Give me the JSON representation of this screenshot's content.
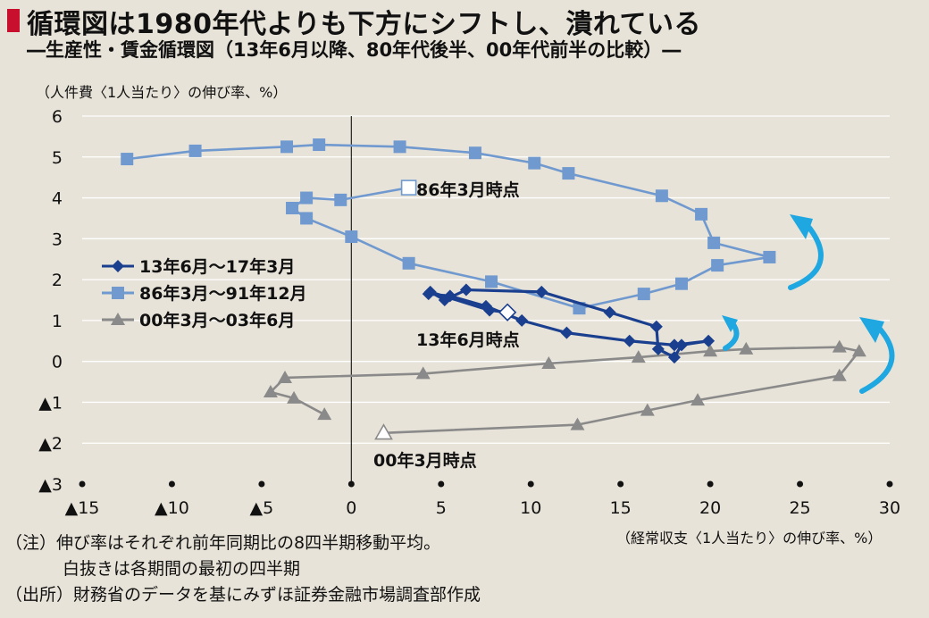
{
  "header": {
    "title": "循環図は1980年代よりも下方にシフトし、潰れている",
    "subtitle": "―生産性・賃金循環図（13年6月以降、80年代後半、00年代前半の比較）―"
  },
  "notes": {
    "line1": "（注）伸び率はそれぞれ前年同期比の8四半期移動平均。",
    "line2": "白抜きは各期間の最初の四半期",
    "line3": "（出所）財務省のデータを基にみずほ証券金融市場調査部作成"
  },
  "chart_data": {
    "type": "scatter",
    "ylabel": "（人件費〈1人当たり〉の伸び率、%）",
    "xlabel": "（経常収支〈1人当たり〉の伸び率、%）",
    "xlim": [
      -15,
      30
    ],
    "ylim": [
      -3,
      6
    ],
    "x_ticks": [
      -15,
      -10,
      -5,
      0,
      5,
      10,
      15,
      20,
      25,
      30
    ],
    "x_tick_labels": [
      "▲15",
      "▲10",
      "▲5",
      "0",
      "5",
      "10",
      "15",
      "20",
      "25",
      "30"
    ],
    "y_ticks": [
      6,
      5,
      4,
      3,
      2,
      1,
      0,
      -1,
      -2,
      -3
    ],
    "y_tick_labels": [
      "6",
      "5",
      "4",
      "3",
      "2",
      "1",
      "0",
      "▲1",
      "▲2",
      "▲3"
    ],
    "grid": true,
    "legend_position": "left-middle",
    "series": [
      {
        "name": "13年6月～17年3月",
        "color": "#1a3f8f",
        "marker": "diamond",
        "start_label": "13年6月時点",
        "points": [
          [
            8.7,
            1.2
          ],
          [
            7.7,
            1.25
          ],
          [
            4.4,
            1.7
          ],
          [
            5.2,
            1.5
          ],
          [
            6.4,
            1.75
          ],
          [
            10.6,
            1.7
          ],
          [
            14.4,
            1.2
          ],
          [
            17.0,
            0.85
          ],
          [
            17.1,
            0.3
          ],
          [
            18.0,
            0.1
          ],
          [
            18.4,
            0.4
          ],
          [
            19.9,
            0.5
          ],
          [
            18.0,
            0.4
          ],
          [
            15.5,
            0.5
          ],
          [
            12.0,
            0.7
          ],
          [
            9.5,
            1.0
          ],
          [
            7.5,
            1.35
          ],
          [
            5.5,
            1.6
          ],
          [
            4.3,
            1.65
          ]
        ]
      },
      {
        "name": "86年3月～91年12月",
        "color": "#6f99cf",
        "marker": "square",
        "start_label": "86年3月時点",
        "points": [
          [
            3.2,
            4.25
          ],
          [
            -0.6,
            3.95
          ],
          [
            -2.5,
            4.0
          ],
          [
            -3.3,
            3.75
          ],
          [
            -2.5,
            3.5
          ],
          [
            0.0,
            3.05
          ],
          [
            3.2,
            2.4
          ],
          [
            7.8,
            1.95
          ],
          [
            12.7,
            1.3
          ],
          [
            16.3,
            1.65
          ],
          [
            18.4,
            1.9
          ],
          [
            20.4,
            2.35
          ],
          [
            23.3,
            2.55
          ],
          [
            20.2,
            2.9
          ],
          [
            19.5,
            3.6
          ],
          [
            17.3,
            4.05
          ],
          [
            12.1,
            4.6
          ],
          [
            10.2,
            4.85
          ],
          [
            6.9,
            5.1
          ],
          [
            2.7,
            5.25
          ],
          [
            -1.8,
            5.3
          ],
          [
            -3.6,
            5.25
          ],
          [
            -8.7,
            5.15
          ],
          [
            -12.5,
            4.95
          ]
        ]
      },
      {
        "name": "00年3月～03年6月",
        "color": "#8a8a8a",
        "marker": "triangle",
        "start_label": "00年3月時点",
        "points": [
          [
            1.8,
            -1.75
          ],
          [
            12.6,
            -1.55
          ],
          [
            16.5,
            -1.2
          ],
          [
            19.3,
            -0.95
          ],
          [
            27.2,
            -0.35
          ],
          [
            28.3,
            0.25
          ],
          [
            27.2,
            0.35
          ],
          [
            22.0,
            0.3
          ],
          [
            20.0,
            0.25
          ],
          [
            16.0,
            0.1
          ],
          [
            11.0,
            -0.05
          ],
          [
            4.0,
            -0.3
          ],
          [
            -3.7,
            -0.4
          ],
          [
            -4.5,
            -0.75
          ],
          [
            -3.2,
            -0.9
          ],
          [
            -1.5,
            -1.3
          ]
        ]
      }
    ]
  }
}
